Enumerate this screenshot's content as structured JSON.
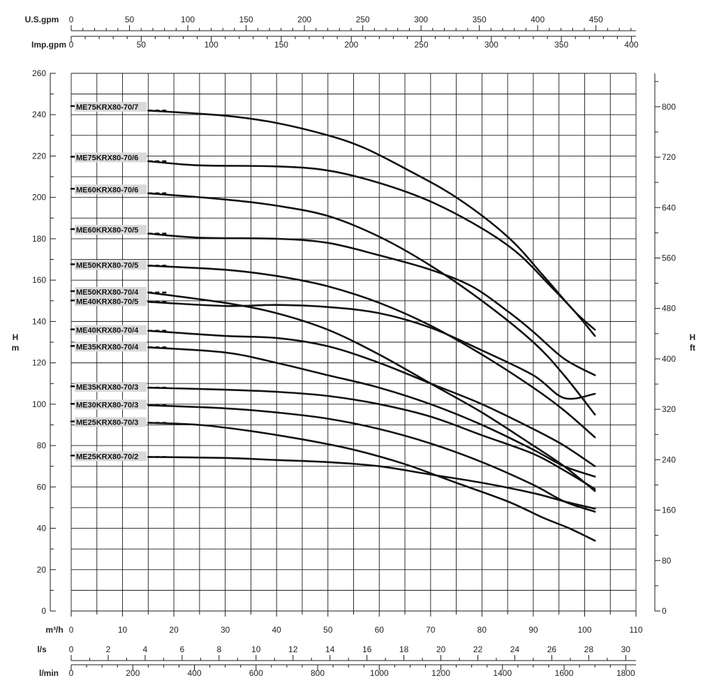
{
  "chart_data": {
    "type": "line",
    "x_axis": {
      "label": "m³/h",
      "range": [
        0,
        110
      ],
      "ticks": [
        0,
        10,
        20,
        30,
        40,
        50,
        60,
        70,
        80,
        90,
        100,
        110
      ]
    },
    "y_axis": {
      "label_line1": "H",
      "label_line2": "m",
      "range": [
        0,
        260
      ],
      "ticks": [
        0,
        20,
        40,
        60,
        80,
        100,
        120,
        140,
        160,
        180,
        200,
        220,
        240,
        260
      ]
    },
    "y_axis_right": {
      "label_line1": "H",
      "label_line2": "ft",
      "ticks": [
        0,
        80,
        160,
        240,
        320,
        400,
        480,
        560,
        640,
        720,
        800
      ],
      "ft_per_m": 3.28084
    },
    "secondary_x_axes": [
      {
        "label": "U.S.gpm",
        "m3h_per_unit": 0.22712,
        "ticks": [
          0,
          50,
          100,
          150,
          200,
          250,
          300,
          350,
          400,
          450
        ],
        "minor_step": 10
      },
      {
        "label": "Imp.gpm",
        "m3h_per_unit": 0.27277,
        "ticks": [
          0,
          50,
          100,
          150,
          200,
          250,
          300,
          350,
          400
        ],
        "minor_step": 10
      },
      {
        "label": "l/s",
        "m3h_per_unit": 3.6,
        "ticks": [
          0,
          2,
          4,
          6,
          8,
          10,
          12,
          14,
          16,
          18,
          20,
          22,
          24,
          26,
          28,
          30
        ],
        "minor_step": 1
      },
      {
        "label": "l/min",
        "m3h_per_unit": 0.06,
        "ticks": [
          0,
          200,
          400,
          600,
          800,
          1000,
          1200,
          1400,
          1600,
          1800
        ],
        "minor_step": 50
      }
    ],
    "grid": true,
    "series": [
      {
        "name": "ME75KRX80-70/7",
        "label_y": 243.5,
        "dash_start_y": 242,
        "points": [
          [
            15,
            242
          ],
          [
            30,
            239.5
          ],
          [
            40,
            236
          ],
          [
            50,
            230
          ],
          [
            57,
            224
          ],
          [
            65,
            214
          ],
          [
            75,
            200
          ],
          [
            85,
            181
          ],
          [
            92,
            162
          ],
          [
            98,
            145
          ],
          [
            102,
            136
          ]
        ]
      },
      {
        "name": "ME75KRX80-70/6",
        "label_y": 219,
        "dash_start_y": 217.5,
        "points": [
          [
            15,
            217.5
          ],
          [
            25,
            215.5
          ],
          [
            40,
            215
          ],
          [
            50,
            213
          ],
          [
            60,
            207
          ],
          [
            70,
            198
          ],
          [
            80,
            185
          ],
          [
            87,
            173
          ],
          [
            93,
            158
          ],
          [
            98,
            145
          ],
          [
            102,
            133
          ]
        ]
      },
      {
        "name": "ME60KRX80-70/6",
        "label_y": 203.5,
        "dash_start_y": 202,
        "points": [
          [
            15,
            202
          ],
          [
            30,
            199
          ],
          [
            40,
            196
          ],
          [
            50,
            191
          ],
          [
            60,
            181
          ],
          [
            70,
            167
          ],
          [
            80,
            150
          ],
          [
            90,
            130
          ],
          [
            96,
            114
          ],
          [
            102,
            95
          ]
        ]
      },
      {
        "name": "ME60KRX80-70/5",
        "label_y": 184,
        "dash_start_y": 182.5,
        "points": [
          [
            15,
            182.5
          ],
          [
            25,
            180.5
          ],
          [
            40,
            180
          ],
          [
            50,
            178
          ],
          [
            60,
            172
          ],
          [
            70,
            165
          ],
          [
            78,
            157
          ],
          [
            85,
            145
          ],
          [
            90,
            135
          ],
          [
            96,
            122
          ],
          [
            102,
            114
          ]
        ]
      },
      {
        "name": "ME50KRX80-70/5",
        "label_y": 167,
        "dash_start_y": 167,
        "points": [
          [
            15,
            167
          ],
          [
            30,
            165
          ],
          [
            40,
            162
          ],
          [
            50,
            157
          ],
          [
            60,
            149
          ],
          [
            70,
            138
          ],
          [
            80,
            124
          ],
          [
            90,
            108
          ],
          [
            96,
            97
          ],
          [
            102,
            84
          ]
        ]
      },
      {
        "name": "ME50KRX80-70/4",
        "label_y": 154,
        "dash_start_y": 154,
        "points": [
          [
            15,
            154
          ],
          [
            30,
            149
          ],
          [
            40,
            144
          ],
          [
            50,
            136
          ],
          [
            60,
            124
          ],
          [
            70,
            110
          ],
          [
            80,
            96
          ],
          [
            90,
            80
          ],
          [
            96,
            70
          ],
          [
            102,
            58
          ]
        ]
      },
      {
        "name": "ME40KRX80-70/5",
        "label_y": 149.5,
        "dash_start_y": 149.5,
        "points": [
          [
            15,
            149.5
          ],
          [
            30,
            147.5
          ],
          [
            40,
            148
          ],
          [
            50,
            147
          ],
          [
            60,
            144
          ],
          [
            70,
            137
          ],
          [
            80,
            126
          ],
          [
            90,
            114
          ],
          [
            96,
            103
          ],
          [
            102,
            105
          ]
        ]
      },
      {
        "name": "ME40KRX80-70/4",
        "label_y": 135.5,
        "dash_start_y": 135.5,
        "points": [
          [
            15,
            135.5
          ],
          [
            30,
            133
          ],
          [
            40,
            132
          ],
          [
            50,
            128
          ],
          [
            60,
            120
          ],
          [
            70,
            110
          ],
          [
            80,
            100
          ],
          [
            90,
            88
          ],
          [
            96,
            80
          ],
          [
            102,
            70
          ]
        ]
      },
      {
        "name": "ME35KRX80-70/4",
        "label_y": 127.5,
        "dash_start_y": 127.5,
        "points": [
          [
            15,
            127.5
          ],
          [
            30,
            125
          ],
          [
            40,
            120
          ],
          [
            50,
            114
          ],
          [
            60,
            108
          ],
          [
            70,
            100
          ],
          [
            80,
            90
          ],
          [
            90,
            78
          ],
          [
            96,
            70
          ],
          [
            102,
            65
          ]
        ]
      },
      {
        "name": "ME35KRX80-70/3",
        "label_y": 108,
        "dash_start_y": 108,
        "points": [
          [
            15,
            108
          ],
          [
            30,
            107
          ],
          [
            40,
            106
          ],
          [
            50,
            104
          ],
          [
            60,
            100
          ],
          [
            70,
            94
          ],
          [
            80,
            85
          ],
          [
            90,
            76
          ],
          [
            96,
            68
          ],
          [
            102,
            59
          ]
        ]
      },
      {
        "name": "ME30KRX80-70/3",
        "label_y": 99.5,
        "dash_start_y": 99.5,
        "points": [
          [
            15,
            99.5
          ],
          [
            30,
            98
          ],
          [
            40,
            96
          ],
          [
            50,
            93
          ],
          [
            60,
            88
          ],
          [
            70,
            81
          ],
          [
            80,
            72
          ],
          [
            90,
            61
          ],
          [
            96,
            53
          ],
          [
            102,
            48
          ]
        ]
      },
      {
        "name": "ME25KRX80-70/3",
        "label_y": 91,
        "dash_start_y": 91,
        "points": [
          [
            15,
            91
          ],
          [
            25,
            90
          ],
          [
            35,
            87
          ],
          [
            45,
            83
          ],
          [
            55,
            78
          ],
          [
            65,
            71
          ],
          [
            75,
            62
          ],
          [
            85,
            53
          ],
          [
            92,
            45
          ],
          [
            97,
            40
          ],
          [
            102,
            34
          ]
        ]
      },
      {
        "name": "ME25KRX80-70/2",
        "label_y": 74.5,
        "dash_start_y": 74.5,
        "points": [
          [
            15,
            74.5
          ],
          [
            30,
            74
          ],
          [
            40,
            73
          ],
          [
            50,
            72
          ],
          [
            60,
            70
          ],
          [
            70,
            66
          ],
          [
            80,
            62
          ],
          [
            90,
            57
          ],
          [
            96,
            53
          ],
          [
            102,
            49.5
          ]
        ]
      }
    ]
  }
}
